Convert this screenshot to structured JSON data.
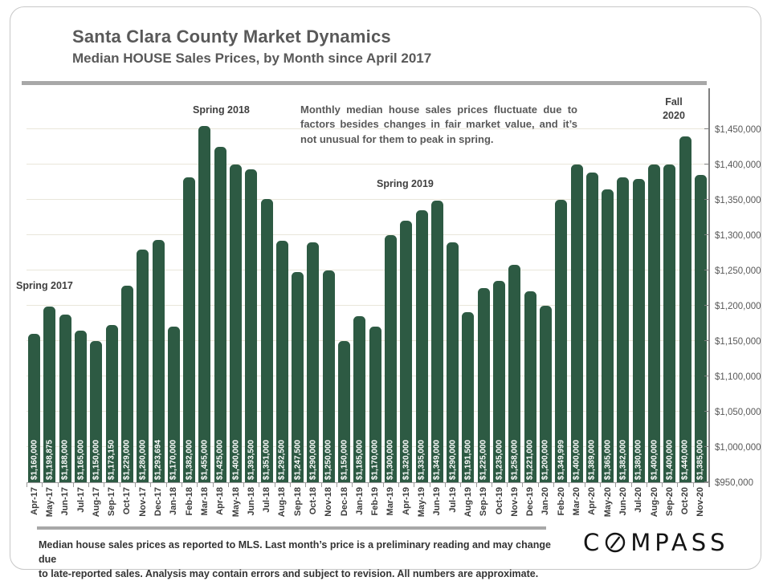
{
  "page": {
    "title": "Santa Clara County Market Dynamics",
    "subtitle": "Median HOUSE Sales Prices, by Month since April 2017"
  },
  "annotations": {
    "spring_2017": "Spring 2017",
    "spring_2018": "Spring 2018",
    "spring_2019": "Spring 2019",
    "fall_2020_line1": "Fall",
    "fall_2020_line2": "2020",
    "note": "Monthly median house sales prices fluctuate due to factors besides changes in fair market value, and it’s not unusual for them to peak in spring."
  },
  "footer": {
    "line1": "Median house sales prices as reported to MLS. Last month’s price is a preliminary reading and may change due",
    "line2": "to late-reported sales. Analysis may contain errors and subject to revision. All numbers are approximate.",
    "logo": {
      "full": "COMPASS",
      "prefix": "C",
      "suffix": "MPASS"
    }
  },
  "colors": {
    "bar": "#2d5a43",
    "gridline": "#e9e6da",
    "axis": "#7f7f7f",
    "divider": "#a8a8a8",
    "title_text": "#595959",
    "bar_label_text": "#ffffff"
  },
  "chart_data": {
    "type": "bar",
    "title": "Median HOUSE Sales Prices, by Month since April 2017",
    "xlabel": "",
    "ylabel": "",
    "grid": true,
    "value_axis_side": "right",
    "ylim": [
      950000,
      1508000
    ],
    "ytick_min": 950000,
    "ytick_max": 1450000,
    "ytick_step": 50000,
    "ytick_labels": [
      "$950,000",
      "$1,000,000",
      "$1,050,000",
      "$1,100,000",
      "$1,150,000",
      "$1,200,000",
      "$1,250,000",
      "$1,300,000",
      "$1,350,000",
      "$1,400,000",
      "$1,450,000"
    ],
    "categories": [
      "Apr-17",
      "May-17",
      "Jun-17",
      "Jul-17",
      "Aug-17",
      "Sep-17",
      "Oct-17",
      "Nov-17",
      "Dec-17",
      "Jan-18",
      "Feb-18",
      "Mar-18",
      "Apr-18",
      "May-18",
      "Jun-18",
      "Jul-18",
      "Aug-18",
      "Sep-18",
      "Oct-18",
      "Nov-18",
      "Dec-18",
      "Jan-19",
      "Feb-19",
      "Mar-19",
      "Apr-19",
      "May-19",
      "Jun-19",
      "Jul-19",
      "Aug-19",
      "Sep-19",
      "Oct-19",
      "Nov-19",
      "Dec-19",
      "Jan-20",
      "Feb-20",
      "Mar-20",
      "Apr-20",
      "May-20",
      "Jun-20",
      "Jul-20",
      "Aug-20",
      "Sep-20",
      "Oct-20",
      "Nov-20"
    ],
    "values": [
      1160000,
      1198875,
      1188000,
      1165000,
      1150000,
      1173150,
      1229000,
      1280000,
      1293694,
      1170000,
      1382000,
      1455000,
      1425000,
      1400000,
      1393500,
      1351000,
      1292500,
      1247500,
      1290000,
      1250000,
      1150000,
      1185000,
      1170000,
      1300000,
      1320000,
      1335000,
      1349000,
      1290000,
      1191500,
      1225000,
      1235000,
      1258000,
      1221000,
      1200000,
      1349999,
      1400000,
      1389000,
      1365000,
      1382000,
      1380000,
      1400000,
      1400000,
      1440000,
      1385000
    ],
    "bar_labels": [
      "$1,160,000",
      "$1,198,875",
      "$1,188,000",
      "$1,165,000",
      "$1,150,000",
      "$1,173,150",
      "$1,229,000",
      "$1,280,000",
      "$1,293,694",
      "$1,170,000",
      "$1,382,000",
      "$1,455,000",
      "$1,425,000",
      "$1,400,000",
      "$1,393,500",
      "$1,351,000",
      "$1,292,500",
      "$1,247,500",
      "$1,290,000",
      "$1,250,000",
      "$1,150,000",
      "$1,185,000",
      "$1,170,000",
      "$1,300,000",
      "$1,320,000",
      "$1,335,000",
      "$1,349,000",
      "$1,290,000",
      "$1,191,500",
      "$1,225,000",
      "$1,235,000",
      "$1,258,000",
      "$1,221,000",
      "$1,200,000",
      "$1,349,999",
      "$1,400,000",
      "$1,389,000",
      "$1,365,000",
      "$1,382,000",
      "$1,380,000",
      "$1,400,000",
      "$1,400,000",
      "$1,440,000",
      "$1,385,000"
    ]
  }
}
